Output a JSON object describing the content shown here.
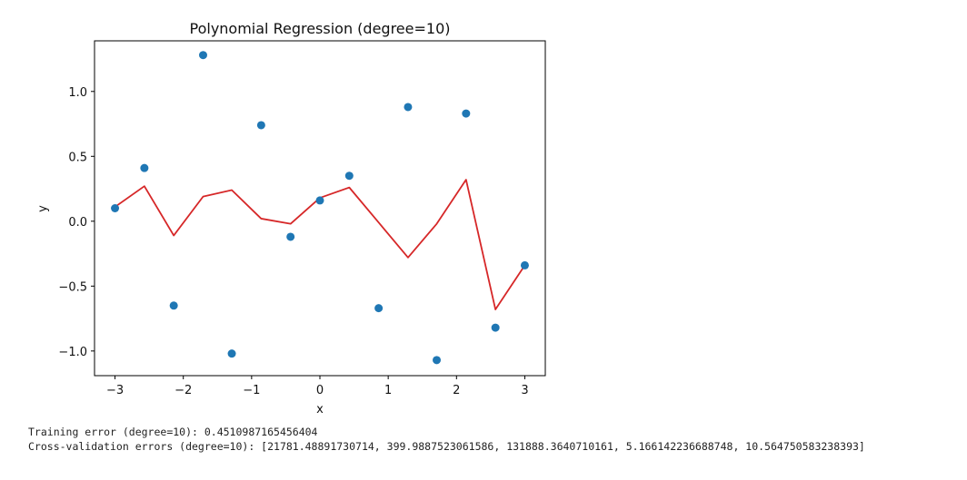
{
  "chart_data": {
    "type": "scatter",
    "title": "Polynomial Regression (degree=10)",
    "xlabel": "x",
    "ylabel": "y",
    "xlim": [
      -3.3,
      3.3
    ],
    "ylim": [
      -1.19,
      1.39
    ],
    "xticks": [
      -3,
      -2,
      -1,
      0,
      1,
      2,
      3
    ],
    "xtick_labels": [
      "−3",
      "−2",
      "−1",
      "0",
      "1",
      "2",
      "3"
    ],
    "yticks": [
      -1.0,
      -0.5,
      0.0,
      0.5,
      1.0
    ],
    "ytick_labels": [
      "−1.0",
      "−0.5",
      "0.0",
      "0.5",
      "1.0"
    ],
    "grid": false,
    "series": [
      {
        "kind": "scatter",
        "color": "#1f77b4",
        "x": [
          -3.0,
          -2.57,
          -2.14,
          -1.71,
          -1.29,
          -0.86,
          -0.43,
          0.0,
          0.43,
          0.86,
          1.29,
          1.71,
          2.14,
          2.57,
          3.0
        ],
        "y": [
          0.1,
          0.41,
          -0.65,
          1.28,
          -1.02,
          0.74,
          -0.12,
          0.16,
          0.35,
          -0.67,
          0.88,
          -1.07,
          0.83,
          -0.82,
          -0.34
        ]
      },
      {
        "kind": "line",
        "color": "#d62728",
        "x": [
          -3.0,
          -2.57,
          -2.14,
          -1.71,
          -1.29,
          -0.86,
          -0.43,
          0.0,
          0.43,
          0.86,
          1.29,
          1.71,
          2.14,
          2.57,
          3.0
        ],
        "y": [
          0.11,
          0.27,
          -0.11,
          0.19,
          0.24,
          0.02,
          -0.02,
          0.18,
          0.26,
          -0.01,
          -0.28,
          -0.02,
          0.32,
          -0.68,
          -0.34
        ]
      }
    ]
  },
  "console": {
    "training_error": "Training error (degree=10): 0.4510987165456404",
    "cv_errors": "Cross-validation errors (degree=10): [21781.48891730714, 399.9887523061586, 131888.3640710161, 5.166142236688748, 10.564750583238393]"
  }
}
